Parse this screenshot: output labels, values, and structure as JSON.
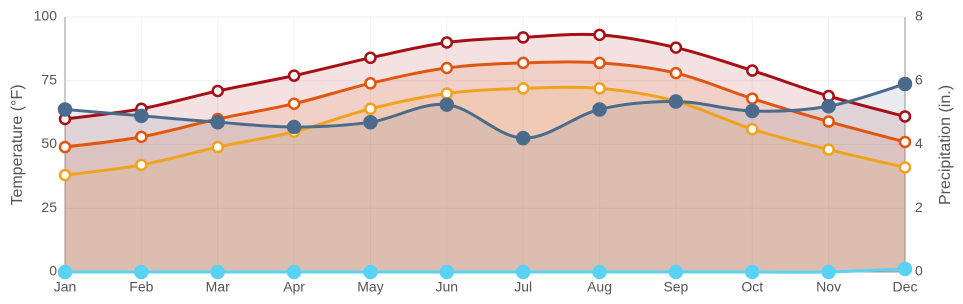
{
  "chart_data": {
    "type": "line",
    "y_label": "Temperature (°F)",
    "y2_label": "Precipitation (in.)",
    "categories": [
      "Jan",
      "Feb",
      "Mar",
      "Apr",
      "May",
      "Jun",
      "Jul",
      "Aug",
      "Sep",
      "Oct",
      "Nov",
      "Dec"
    ],
    "ylim": [
      0,
      100
    ],
    "yticks": [
      0,
      25,
      50,
      75,
      100
    ],
    "y2lim": [
      0,
      8
    ],
    "y2ticks": [
      0,
      2,
      4,
      6,
      8
    ],
    "grid": true,
    "series": [
      {
        "color": "#a50f15",
        "values": [
          60,
          64,
          71,
          77,
          84,
          90,
          92,
          93,
          88,
          79,
          69,
          61
        ]
      },
      {
        "color": "#e0560f",
        "values": [
          49,
          53,
          60,
          66,
          74,
          80,
          82,
          82,
          78,
          68,
          59,
          51
        ]
      },
      {
        "color": "#f0a21e",
        "values": [
          38,
          42,
          49,
          55,
          64,
          70,
          72,
          72,
          67,
          56,
          48,
          41
        ]
      },
      {
        "color": "#4a6b8c",
        "axis": "y2",
        "values": [
          5.1,
          4.9,
          4.7,
          4.55,
          4.7,
          5.25,
          4.2,
          5.1,
          5.35,
          5.05,
          5.2,
          5.9
        ]
      },
      {
        "color": "#5ad2f4",
        "axis": "y2",
        "values": [
          0,
          0,
          0,
          0,
          0,
          0,
          0,
          0,
          0,
          0,
          0,
          0.1
        ]
      }
    ]
  }
}
